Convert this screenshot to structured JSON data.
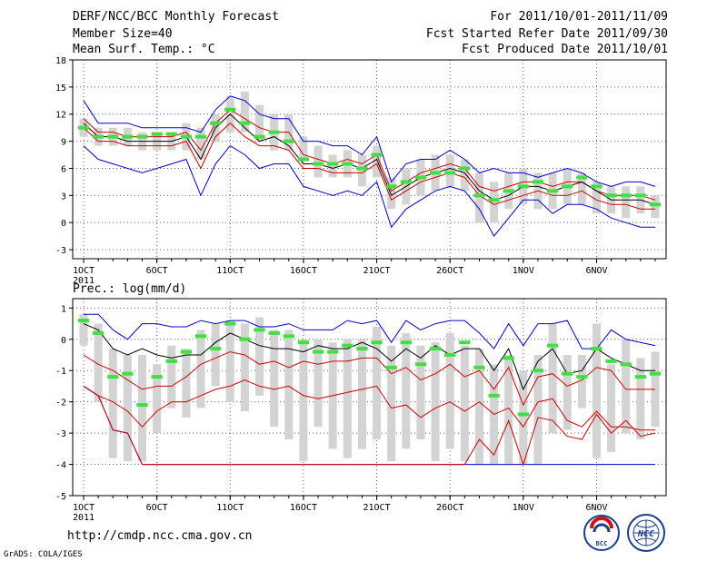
{
  "header": {
    "title": "DERF/NCC/BCC Monthly Forecast",
    "member_size": "Member Size=40",
    "variable": "Mean Surf. Temp.: °C",
    "for_period": "For 2011/10/01-2011/11/09",
    "fcst_started": "Fcst Started Refer Date 2011/09/30",
    "fcst_produced": "Fcst Produced Date 2011/10/01"
  },
  "footer": {
    "url": "http://cmdp.ncc.cma.gov.cn",
    "credit": "GrADS: COLA/IGES",
    "logo1_text": "BCC",
    "logo2_text": "NCC"
  },
  "colors": {
    "ensemble_box": "#d3d3d3",
    "ensemble_mean": "#000000",
    "spread_inner": "#d00000",
    "spread_outer": "#0000d0",
    "climatology_mark": "#40e040",
    "grid": "#606060"
  },
  "chart_data": [
    {
      "id": "temp",
      "type": "line",
      "title": "Mean Surf. Temp.: °C",
      "ylim": [
        -4,
        18
      ],
      "xlim": [
        1,
        40
      ],
      "yticks": [
        -3,
        0,
        3,
        6,
        9,
        12,
        15,
        18
      ],
      "xticks": [
        {
          "x": 1,
          "label": "1OCT",
          "sub": "2011"
        },
        {
          "x": 6,
          "label": "6OCT"
        },
        {
          "x": 11,
          "label": "11OCT"
        },
        {
          "x": 16,
          "label": "16OCT"
        },
        {
          "x": 21,
          "label": "21OCT"
        },
        {
          "x": 26,
          "label": "26OCT"
        },
        {
          "x": 31,
          "label": "1NOV"
        },
        {
          "x": 36,
          "label": "6NOV"
        }
      ],
      "grid": "dotted",
      "boxes": [
        [
          9.5,
          11.5
        ],
        [
          8.5,
          10.5
        ],
        [
          8.5,
          10.5
        ],
        [
          8.5,
          10.5
        ],
        [
          8,
          10
        ],
        [
          8,
          10
        ],
        [
          8,
          10
        ],
        [
          8,
          11
        ],
        [
          7,
          10.5
        ],
        [
          9,
          12
        ],
        [
          10,
          14
        ],
        [
          10,
          14.5
        ],
        [
          9,
          13
        ],
        [
          8,
          12
        ],
        [
          8,
          12
        ],
        [
          7,
          9.5
        ],
        [
          5,
          8.5
        ],
        [
          5,
          7.5
        ],
        [
          5,
          8
        ],
        [
          4,
          7.5
        ],
        [
          5,
          8.5
        ],
        [
          1.5,
          5
        ],
        [
          2,
          6
        ],
        [
          3,
          7
        ],
        [
          3.5,
          7.5
        ],
        [
          4,
          7.5
        ],
        [
          3.5,
          7
        ],
        [
          0,
          5.5
        ],
        [
          0,
          4.5
        ],
        [
          1.5,
          5.5
        ],
        [
          2,
          6
        ],
        [
          1.5,
          5.5
        ],
        [
          1.5,
          5.5
        ],
        [
          2,
          6
        ],
        [
          2,
          5.5
        ],
        [
          1,
          4.5
        ],
        [
          1,
          4
        ],
        [
          0.5,
          4
        ],
        [
          1,
          4
        ],
        [
          0.5,
          3
        ]
      ],
      "series": [
        {
          "name": "max",
          "role": "outer",
          "values": [
            13.5,
            11,
            11,
            11,
            10.5,
            10.5,
            10.5,
            10.5,
            10,
            12.5,
            14,
            13.5,
            12,
            11.5,
            11.5,
            9,
            9,
            8.5,
            8.5,
            7.5,
            9.5,
            4.5,
            6.5,
            7,
            7,
            8,
            7,
            5.5,
            6,
            5.5,
            5.5,
            5,
            5.5,
            6,
            5.5,
            4.5,
            4,
            4.5,
            4.5,
            4
          ]
        },
        {
          "name": "upper",
          "role": "inner",
          "values": [
            11.5,
            10,
            10,
            9.5,
            9.5,
            9.5,
            9.5,
            10,
            8,
            11,
            12.5,
            11.5,
            10.5,
            10,
            10,
            7.5,
            7,
            6.5,
            7,
            6.5,
            7.5,
            3.5,
            4.5,
            5.5,
            6,
            6.5,
            6,
            4,
            3.5,
            4,
            4.5,
            4.5,
            4,
            4.5,
            4.5,
            3.5,
            3,
            3,
            3,
            2.5
          ]
        },
        {
          "name": "mean",
          "role": "mean",
          "values": [
            11,
            9.5,
            9.5,
            9,
            9,
            9,
            9,
            9.5,
            7,
            10.5,
            12,
            10.5,
            9,
            9.5,
            8.5,
            6.5,
            6.5,
            6,
            6.5,
            6,
            7,
            3,
            4,
            5,
            5.5,
            6,
            5.5,
            3.5,
            2.5,
            3,
            4,
            4,
            3.5,
            4,
            4.5,
            3.5,
            2.5,
            2.5,
            2.5,
            2
          ]
        },
        {
          "name": "lower",
          "role": "inner",
          "values": [
            10.5,
            9,
            9,
            8.5,
            8.5,
            8.5,
            8.5,
            9,
            6,
            9.5,
            11,
            9.5,
            8.5,
            8.5,
            8,
            6,
            6,
            5.5,
            5.5,
            5.5,
            6.5,
            2.5,
            3.5,
            4.5,
            5,
            5.5,
            5,
            3,
            2,
            2.5,
            3,
            3.5,
            3,
            3,
            3.5,
            2.5,
            2,
            2,
            1.5,
            1.5
          ]
        },
        {
          "name": "min",
          "role": "outer",
          "values": [
            8.5,
            7,
            6.5,
            6,
            5.5,
            6,
            6.5,
            7,
            3,
            6.5,
            8.5,
            7.5,
            6,
            6.5,
            6.5,
            4,
            3.5,
            3,
            3.5,
            3,
            4.5,
            -0.5,
            1.5,
            2.5,
            3.5,
            4,
            3.5,
            1.5,
            -1.5,
            0.5,
            2.5,
            2.5,
            1,
            2,
            2,
            1.5,
            0.5,
            0,
            -0.5,
            -0.5
          ]
        }
      ],
      "markers": [
        10.5,
        9.5,
        9.5,
        9.5,
        9.5,
        9.8,
        9.8,
        9.5,
        9.5,
        11,
        12.5,
        11,
        9.5,
        10,
        9,
        7,
        6.5,
        6.5,
        6.5,
        6,
        7.5,
        4,
        4.5,
        5,
        5.5,
        5.5,
        6,
        3,
        2.5,
        3.5,
        4,
        4.5,
        3.5,
        4,
        5,
        4,
        3,
        3,
        3,
        2
      ]
    },
    {
      "id": "prec",
      "type": "line",
      "title": "Prec.: log(mm/d)",
      "ylim": [
        -5,
        1.3
      ],
      "xlim": [
        1,
        40
      ],
      "yticks": [
        -5,
        -4,
        -3,
        -2,
        -1,
        0,
        1
      ],
      "xticks": [
        {
          "x": 1,
          "label": "1OCT",
          "sub": "2011"
        },
        {
          "x": 6,
          "label": "6OCT"
        },
        {
          "x": 11,
          "label": "11OCT"
        },
        {
          "x": 16,
          "label": "16OCT"
        },
        {
          "x": 21,
          "label": "21OCT"
        },
        {
          "x": 26,
          "label": "26OCT"
        },
        {
          "x": 31,
          "label": "1NOV"
        },
        {
          "x": 36,
          "label": "6NOV"
        }
      ],
      "grid": "dotted",
      "boxes": [
        [
          -0.2,
          0.8
        ],
        [
          -2,
          0.5
        ],
        [
          -3.8,
          -0.3
        ],
        [
          -3.9,
          -0.5
        ],
        [
          -3.9,
          -0.5
        ],
        [
          -3,
          -0.8
        ],
        [
          -2.2,
          -0.2
        ],
        [
          -2.5,
          -0.3
        ],
        [
          -2.2,
          0.3
        ],
        [
          -1.5,
          0.5
        ],
        [
          -2,
          0.6
        ],
        [
          -2.3,
          0.5
        ],
        [
          -1.8,
          0.7
        ],
        [
          -2.8,
          0.3
        ],
        [
          -3.2,
          0.3
        ],
        [
          -3.9,
          0
        ],
        [
          -2.8,
          0
        ],
        [
          -3.5,
          -0.1
        ],
        [
          -3.8,
          0
        ],
        [
          -3.5,
          0
        ],
        [
          -3.2,
          0.4
        ],
        [
          -3.9,
          -0.2
        ],
        [
          -3.5,
          0.2
        ],
        [
          -3.2,
          -0.2
        ],
        [
          -3.9,
          -0.1
        ],
        [
          -3.5,
          0.2
        ],
        [
          -3.9,
          -0.2
        ],
        [
          -4,
          -0.3
        ],
        [
          -4,
          -0.8
        ],
        [
          -4,
          -0.5
        ],
        [
          -4,
          -1
        ],
        [
          -4,
          -0.5
        ],
        [
          -3,
          0.5
        ],
        [
          -2.9,
          -0.5
        ],
        [
          -2.2,
          -0.5
        ],
        [
          -3.8,
          0.5
        ],
        [
          -3.6,
          -0.8
        ],
        [
          -3,
          0
        ],
        [
          -3.2,
          -0.6
        ],
        [
          -2.8,
          -0.4
        ]
      ],
      "series": [
        {
          "name": "max",
          "role": "outer",
          "values": [
            0.8,
            0.8,
            0.3,
            0,
            0.5,
            0.5,
            0.4,
            0.4,
            0.6,
            0.5,
            0.6,
            0.6,
            0.4,
            0.4,
            0.5,
            0.3,
            0.3,
            0.3,
            0.6,
            0.5,
            0.6,
            -0.1,
            0.6,
            0.3,
            0.5,
            0.6,
            0.6,
            0.2,
            -0.3,
            0.5,
            -0.2,
            0.5,
            0.5,
            0.6,
            -0.3,
            -0.3,
            0.3,
            0,
            -0.1,
            -0.2
          ]
        },
        {
          "name": "mean",
          "role": "mean",
          "values": [
            0.5,
            0.3,
            -0.3,
            -0.5,
            -0.3,
            -0.5,
            -0.6,
            -0.5,
            -0.5,
            -0.1,
            0.2,
            0,
            -0.2,
            -0.3,
            -0.3,
            -0.4,
            -0.2,
            -0.3,
            -0.3,
            -0.1,
            -0.3,
            -0.7,
            -0.3,
            -0.6,
            -0.2,
            -0.5,
            -0.3,
            -0.3,
            -1,
            -0.3,
            -1.6,
            -0.7,
            -0.3,
            -1.1,
            -1,
            -0.3,
            -0.6,
            -0.8,
            -1,
            -1
          ]
        },
        {
          "name": "upper",
          "role": "inner",
          "values": [
            -0.5,
            -0.8,
            -1,
            -1.3,
            -1.6,
            -1.5,
            -1.5,
            -1.2,
            -0.8,
            -0.6,
            -0.4,
            -0.5,
            -0.8,
            -0.7,
            -0.9,
            -0.7,
            -0.8,
            -0.7,
            -0.7,
            -0.6,
            -0.6,
            -1.1,
            -0.9,
            -1.3,
            -1.1,
            -0.8,
            -1.2,
            -1,
            -1.6,
            -0.9,
            -2.1,
            -1.2,
            -1.1,
            -1.5,
            -1.3,
            -0.9,
            -1,
            -1.6,
            -1.6,
            -1.6
          ]
        },
        {
          "name": "lower",
          "role": "inner",
          "values": [
            -1.5,
            -1.8,
            -2,
            -2.3,
            -2.8,
            -2.3,
            -2,
            -2,
            -1.8,
            -1.6,
            -1.5,
            -1.3,
            -1.5,
            -1.6,
            -1.5,
            -1.8,
            -1.9,
            -1.8,
            -1.7,
            -1.6,
            -1.5,
            -2.2,
            -2.1,
            -2.5,
            -2.2,
            -2,
            -2.3,
            -2,
            -2.4,
            -2.2,
            -2.8,
            -2,
            -1.9,
            -2.6,
            -2.8,
            -2.3,
            -2.8,
            -2.8,
            -2.9,
            -2.9
          ]
        },
        {
          "name": "min",
          "role": "outer",
          "values": [
            -1.5,
            -1.8,
            -2.9,
            -3,
            -4,
            -4,
            -4,
            -4,
            -4,
            -4,
            -4,
            -4,
            -4,
            -4,
            -4,
            -4,
            -4,
            -4,
            -4,
            -4,
            -4,
            -4,
            -4,
            -4,
            -4,
            -4,
            -4,
            -4,
            -4,
            -4,
            -4,
            -4,
            -4,
            -4,
            -4,
            -4,
            -4,
            -4,
            -4,
            -4
          ]
        },
        {
          "name": "red_min",
          "role": "inner",
          "values": [
            -1.5,
            -1.8,
            -2.9,
            -3,
            -4,
            -4,
            -4,
            -4,
            -4,
            -4,
            -4,
            -4,
            -4,
            -4,
            -4,
            -4,
            -4,
            -4,
            -4,
            -4,
            -4,
            -4,
            -4,
            -4,
            -4,
            -4,
            -4,
            -3.2,
            -3.7,
            -2.6,
            -4,
            -2.5,
            -2.6,
            -3.1,
            -3.2,
            -2.4,
            -3,
            -2.6,
            -3.1,
            -3
          ]
        }
      ],
      "markers": [
        0.6,
        0.2,
        -1.2,
        -1.1,
        -2.1,
        -1.2,
        -0.7,
        -0.4,
        0.1,
        -0.3,
        0.5,
        0,
        0.3,
        0.2,
        0.1,
        -0.1,
        -0.4,
        -0.4,
        -0.2,
        -0.3,
        -0.1,
        -0.9,
        -0.1,
        -0.8,
        -0.3,
        -0.5,
        -0.1,
        -0.9,
        -1.8,
        -0.6,
        -2.4,
        -1,
        -0.2,
        -1.1,
        -1.2,
        -0.3,
        -0.7,
        -0.8,
        -1.2,
        -1.1
      ]
    }
  ]
}
